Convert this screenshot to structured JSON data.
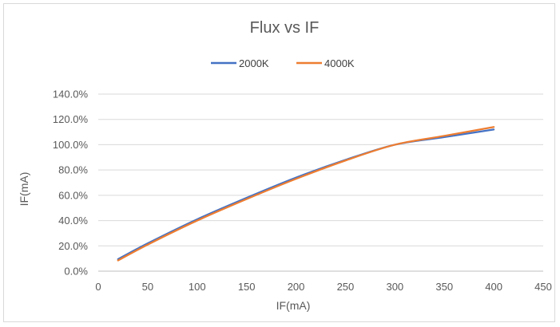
{
  "chart_data": {
    "type": "line",
    "title": "Flux vs IF",
    "xlabel": "IF(mA)",
    "ylabel": "IF(mA)",
    "xlim": [
      0,
      450
    ],
    "ylim": [
      0,
      140
    ],
    "x_ticks": [
      "0",
      "50",
      "100",
      "150",
      "200",
      "250",
      "300",
      "350",
      "400",
      "450"
    ],
    "y_ticks": [
      "0.0%",
      "20.0%",
      "40.0%",
      "60.0%",
      "80.0%",
      "100.0%",
      "120.0%",
      "140.0%"
    ],
    "y_unit": "percent",
    "grid": true,
    "legend_position": "top",
    "series": [
      {
        "name": "2000K",
        "color": "#4472C4",
        "x": [
          20,
          50,
          100,
          150,
          200,
          250,
          300,
          350,
          400
        ],
        "y": [
          9.5,
          22,
          41,
          58,
          74,
          88,
          100,
          106,
          112
        ]
      },
      {
        "name": "4000K",
        "color": "#ED7D31",
        "x": [
          20,
          50,
          100,
          150,
          200,
          250,
          300,
          350,
          400
        ],
        "y": [
          8.5,
          21,
          40,
          57,
          73,
          87.5,
          100,
          107,
          114
        ]
      }
    ]
  }
}
